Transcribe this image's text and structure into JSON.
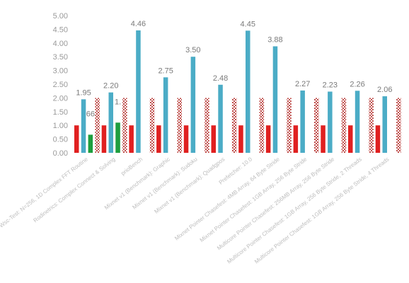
{
  "chart_data": {
    "type": "bar",
    "title": "",
    "xlabel": "",
    "ylabel": "",
    "ylim": [
      0,
      5
    ],
    "yticks": [
      "0.00",
      "0.50",
      "1.00",
      "1.50",
      "2.00",
      "2.50",
      "3.00",
      "3.50",
      "4.00",
      "4.50",
      "5.00"
    ],
    "grid": false,
    "legend": "none",
    "categories": [
      "Wsc-Test: N=256, 1D Complex FFT Routine",
      "Rodinetrics: Complex Connect & Solving",
      "prioBench",
      "Mixnet v1 (Benchmark): Graphic",
      "Mixnet v1 (Benchmark): Sudoku",
      "Mixnet v1 (Benchmark): Quadgpos",
      "Prefetcher: 10.0",
      "Mixnet Pointer Chasefest: 4MB Array, 64 Byte Stride",
      "Mixnet Pointer Chasefest: 1GB Array, 256 Byte Stride",
      "Multicore Pointer Chasefest: 256MB Array, 256 Byte Stride",
      "Multicore Pointer Chasefest: 1GB Array, 256 Byte Stride, 2 Threads",
      "Multicore Pointer Chasefest: 1GB Array, 256 Byte Stride, 4 Threads"
    ],
    "series": [
      {
        "color": "#e02020",
        "pattern": "solid",
        "values": [
          1.0,
          1.0,
          1.0,
          1.0,
          1.0,
          1.0,
          1.0,
          1.0,
          1.0,
          1.0,
          1.0,
          1.0
        ]
      },
      {
        "color": "#4bacc6",
        "pattern": "solid",
        "values": [
          1.95,
          2.2,
          4.46,
          2.75,
          3.5,
          2.48,
          4.45,
          3.88,
          2.27,
          2.23,
          2.26,
          2.06
        ]
      },
      {
        "color": "#1e9e3e",
        "pattern": "solid",
        "values": [
          0.66,
          1.1,
          null,
          null,
          null,
          null,
          null,
          null,
          null,
          null,
          null,
          null
        ]
      },
      {
        "color": "#c0504d",
        "pattern": "checker",
        "values": [
          2.0,
          2.0,
          2.0,
          2.0,
          2.0,
          2.0,
          2.0,
          2.0,
          2.0,
          2.0,
          2.0,
          2.0
        ]
      }
    ],
    "data_labels": [
      "1.95",
      "2.20",
      "4.46",
      "2.75",
      "3.50",
      "2.48",
      "4.45",
      "3.88",
      "2.27",
      "2.23",
      "2.26",
      "2.06"
    ],
    "partial_labels": [
      "66",
      "1."
    ]
  }
}
